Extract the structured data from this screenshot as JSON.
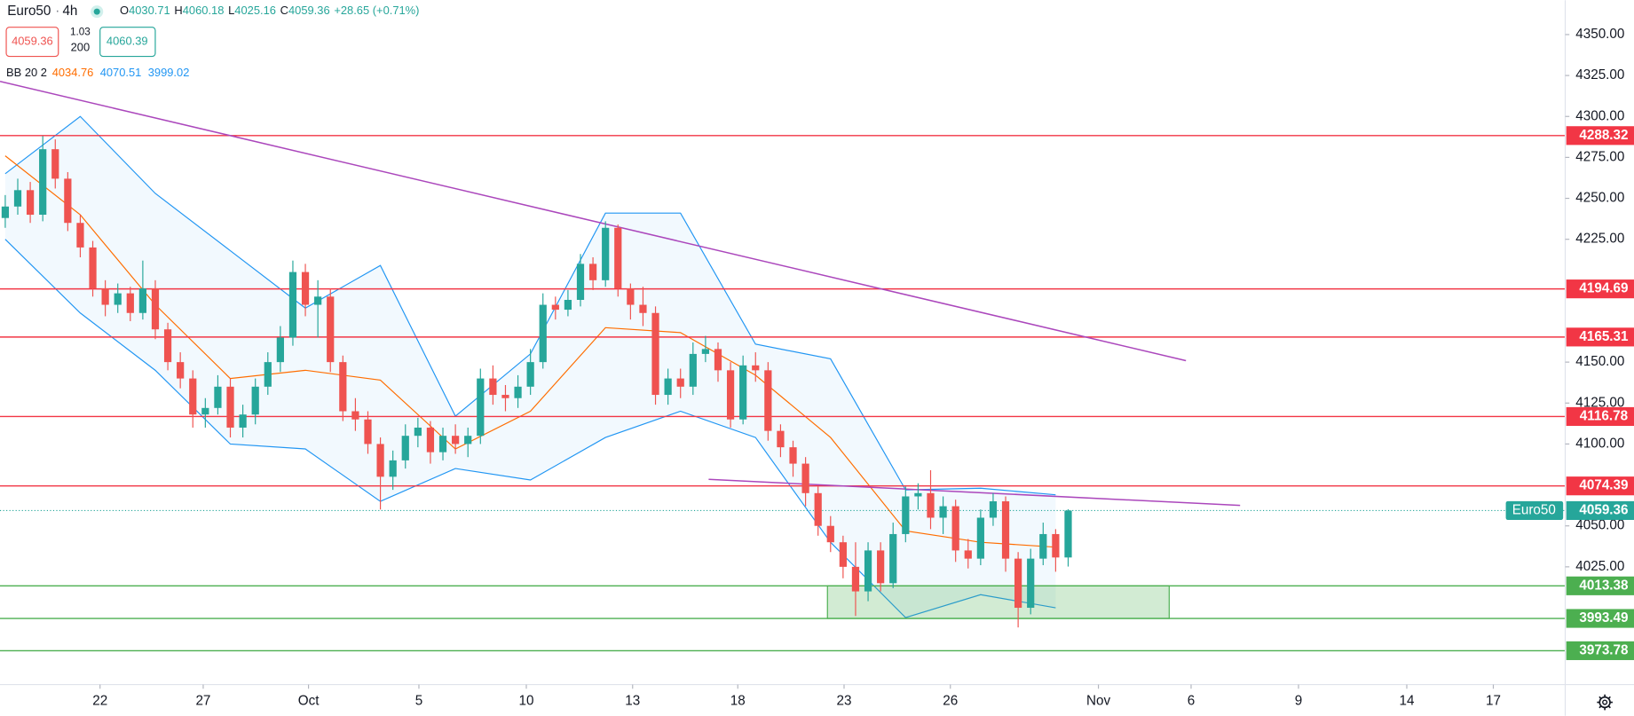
{
  "chart_data": {
    "type": "candlestick",
    "legend": {
      "symbol": "Euro50",
      "interval": "4h",
      "ohlc": [
        {
          "label": "O",
          "value": 4030.71
        },
        {
          "label": "H",
          "value": 4060.18
        },
        {
          "label": "L",
          "value": 4025.16
        },
        {
          "label": "C",
          "value": 4059.36
        }
      ],
      "change": "+28.65 (+0.71%)",
      "sell": "4059.36",
      "spread": "1.03",
      "size": "200",
      "buy": "4060.39",
      "indicator": "BB 20 2",
      "indicator_values": [
        {
          "value": "4034.76",
          "color": "#ff6d00"
        },
        {
          "value": "4070.51",
          "color": "#2196f3"
        },
        {
          "value": "3999.02",
          "color": "#2196f3"
        }
      ]
    },
    "ylim": [
      3953.1,
      4371
    ],
    "yticks": [
      {
        "value": 4350,
        "label": "4350.00"
      },
      {
        "value": 4325,
        "label": "4325.00"
      },
      {
        "value": 4300,
        "label": "4300.00"
      },
      {
        "value": 4275,
        "label": "4275.00"
      },
      {
        "value": 4250,
        "label": "4250.00"
      },
      {
        "value": 4225,
        "label": "4225.00"
      },
      {
        "value": 4150,
        "label": "4150.00"
      },
      {
        "value": 4125,
        "label": "4125.00"
      },
      {
        "value": 4100,
        "label": "4100.00"
      },
      {
        "value": 4050,
        "label": "4050.00"
      },
      {
        "value": 4025,
        "label": "4025.00"
      }
    ],
    "xlim": [
      -0.42,
      124.75
    ],
    "xticks": [
      {
        "value": 7.58,
        "label": "22"
      },
      {
        "value": 15.83,
        "label": "27"
      },
      {
        "value": 24.25,
        "label": "Oct"
      },
      {
        "value": 33.08,
        "label": "5"
      },
      {
        "value": 41.67,
        "label": "10"
      },
      {
        "value": 50.17,
        "label": "13"
      },
      {
        "value": 58.58,
        "label": "18"
      },
      {
        "value": 67.08,
        "label": "23"
      },
      {
        "value": 75.58,
        "label": "26"
      },
      {
        "value": 87.42,
        "label": "Nov"
      },
      {
        "value": 94.83,
        "label": "6"
      },
      {
        "value": 103.42,
        "label": "9"
      },
      {
        "value": 112.08,
        "label": "14"
      },
      {
        "value": 119.0,
        "label": "17"
      }
    ],
    "grid": false,
    "up_color": "#26a69a",
    "down_color": "#ef5350",
    "candles": {
      "open": [
        4238,
        4245,
        4255,
        4240,
        4280,
        4262,
        4235,
        4220,
        4195,
        4185,
        4192,
        4180,
        4195,
        4170,
        4150,
        4140,
        4118,
        4122,
        4135,
        4110,
        4118,
        4135,
        4150,
        4165,
        4205,
        4185,
        4190,
        4150,
        4120,
        4115,
        4100,
        4080,
        4090,
        4105,
        4110,
        4095,
        4105,
        4100,
        4105,
        4140,
        4130,
        4128,
        4135,
        4150,
        4185,
        4182,
        4188,
        4210,
        4200,
        4232,
        4195,
        4185,
        4180,
        4130,
        4140,
        4135,
        4155,
        4158,
        4145,
        4115,
        4148,
        4145,
        4108,
        4098,
        4088,
        4070,
        4050,
        4040,
        4025,
        4010,
        4035,
        4015,
        4045,
        4068,
        4070,
        4055,
        4062,
        4035,
        4030,
        4055,
        4065,
        4030,
        4000,
        4030,
        4045,
        4030.71
      ],
      "high": [
        4252,
        4262,
        4260,
        4288,
        4286,
        4266,
        4240,
        4224,
        4200,
        4198,
        4196,
        4212,
        4200,
        4174,
        4156,
        4145,
        4128,
        4142,
        4140,
        4124,
        4140,
        4156,
        4172,
        4212,
        4210,
        4200,
        4195,
        4154,
        4128,
        4120,
        4104,
        4096,
        4112,
        4116,
        4114,
        4110,
        4112,
        4110,
        4146,
        4148,
        4136,
        4142,
        4158,
        4192,
        4190,
        4194,
        4216,
        4214,
        4236,
        4234,
        4198,
        4196,
        4184,
        4146,
        4146,
        4162,
        4166,
        4162,
        4150,
        4154,
        4156,
        4150,
        4112,
        4102,
        4092,
        4074,
        4056,
        4044,
        4040,
        4040,
        4040,
        4052,
        4074,
        4076,
        4084,
        4068,
        4066,
        4042,
        4060,
        4070,
        4068,
        4034,
        4036,
        4052,
        4048,
        4060.18
      ],
      "low": [
        4232,
        4240,
        4235,
        4236,
        4256,
        4230,
        4214,
        4190,
        4178,
        4180,
        4175,
        4176,
        4164,
        4145,
        4134,
        4110,
        4110,
        4118,
        4104,
        4104,
        4112,
        4130,
        4144,
        4160,
        4178,
        4165,
        4144,
        4114,
        4108,
        4094,
        4060,
        4072,
        4085,
        4098,
        4088,
        4090,
        4094,
        4092,
        4100,
        4124,
        4120,
        4122,
        4130,
        4146,
        4176,
        4178,
        4184,
        4194,
        4196,
        4190,
        4176,
        4172,
        4124,
        4124,
        4128,
        4130,
        4150,
        4138,
        4110,
        4112,
        4138,
        4102,
        4092,
        4080,
        4062,
        4044,
        4034,
        4018,
        3995,
        4004,
        4010,
        4012,
        4040,
        4060,
        4048,
        4045,
        4028,
        4024,
        4026,
        4050,
        4022,
        3988,
        3996,
        4026,
        4022,
        4025.16
      ],
      "close": [
        4245,
        4255,
        4240,
        4280,
        4262,
        4235,
        4220,
        4195,
        4185,
        4192,
        4180,
        4195,
        4170,
        4150,
        4140,
        4118,
        4122,
        4135,
        4110,
        4118,
        4135,
        4150,
        4165,
        4205,
        4185,
        4190,
        4150,
        4120,
        4115,
        4100,
        4080,
        4090,
        4105,
        4110,
        4095,
        4105,
        4100,
        4105,
        4140,
        4130,
        4128,
        4135,
        4150,
        4185,
        4182,
        4188,
        4210,
        4200,
        4232,
        4195,
        4185,
        4180,
        4130,
        4140,
        4135,
        4155,
        4158,
        4145,
        4115,
        4148,
        4145,
        4108,
        4098,
        4088,
        4070,
        4050,
        4040,
        4025,
        4010,
        4035,
        4015,
        4045,
        4068,
        4070,
        4055,
        4062,
        4035,
        4030,
        4055,
        4065,
        4030,
        4000,
        4030,
        4045,
        4030.71,
        4059.36
      ]
    },
    "bands": {
      "x": [
        0,
        6,
        12,
        18,
        24,
        30,
        36,
        42,
        48,
        54,
        60,
        66,
        72,
        78,
        84
      ],
      "upper": [
        4265,
        4300,
        4253,
        4218,
        4183,
        4209,
        4117,
        4155,
        4241,
        4241,
        4161,
        4152,
        4072,
        4073,
        4069
      ],
      "middle": [
        4276,
        4240,
        4185,
        4140,
        4145,
        4139,
        4097,
        4120,
        4171,
        4168,
        4142,
        4104,
        4047,
        4040,
        4037
      ],
      "lower": [
        4225,
        4180,
        4145,
        4100,
        4097,
        4065,
        4085,
        4078,
        4104,
        4120,
        4104,
        4040,
        3994,
        4008,
        4000
      ],
      "band_color": "#2196f3",
      "middle_color": "#ff6d00"
    },
    "levels": [
      {
        "value": 4288.32,
        "color": "#f23645"
      },
      {
        "value": 4194.69,
        "color": "#f23645"
      },
      {
        "value": 4165.31,
        "color": "#f23645"
      },
      {
        "value": 4116.78,
        "color": "#f23645"
      },
      {
        "value": 4074.39,
        "color": "#f23645"
      },
      {
        "value": 4013.38,
        "color": "#4caf50"
      },
      {
        "value": 3993.49,
        "color": "#4caf50"
      },
      {
        "value": 3973.78,
        "color": "#4caf50"
      }
    ],
    "trend_lines": [
      {
        "x": [
          -0.42,
          94.42
        ],
        "y": [
          4321.4,
          4150.9
        ],
        "color": "#ab47bc"
      },
      {
        "x": [
          56.25,
          98.75
        ],
        "y": [
          4078.4,
          4062.5
        ],
        "color": "#ab47bc"
      }
    ],
    "zone": {
      "x": [
        65.75,
        93.08
      ],
      "y": [
        4013.38,
        3993.49
      ],
      "color": "#4caf50"
    },
    "last_price": {
      "name": "Euro50",
      "value": 4059.36,
      "color": "#26a69a"
    }
  }
}
